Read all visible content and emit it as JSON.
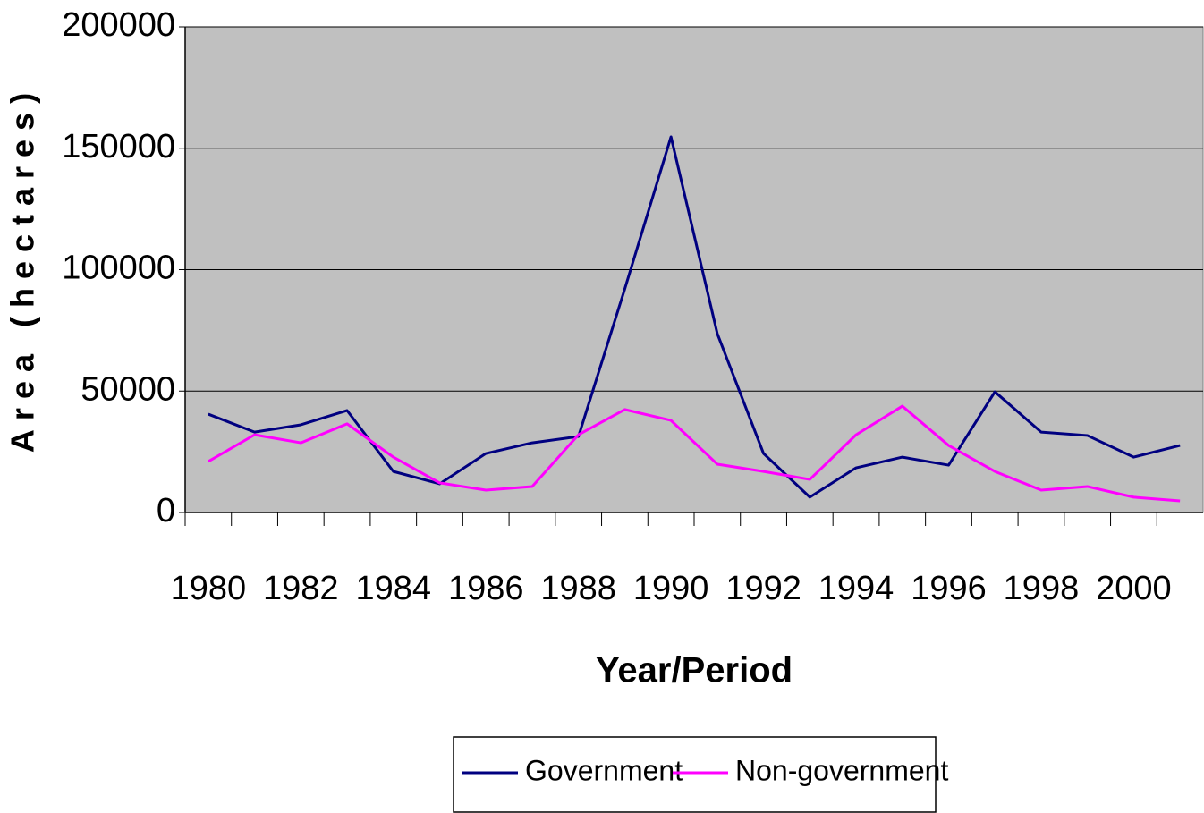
{
  "chart_data": {
    "type": "line",
    "x_label": "Year/Period",
    "y_label": "Area (hectares)",
    "categories": [
      "1980",
      null,
      "1982",
      null,
      "1984",
      null,
      "1986",
      null,
      "1988",
      null,
      "1990",
      null,
      "1992",
      null,
      "1994",
      null,
      "1996",
      null,
      "1998",
      null,
      "2000",
      null
    ],
    "series": [
      {
        "name": "Government",
        "color": "#000080",
        "values": [
          40500,
          33100,
          36100,
          42000,
          16900,
          11800,
          24300,
          28700,
          31300,
          92000,
          154700,
          73700,
          24300,
          6300,
          18400,
          22800,
          19500,
          49700,
          33100,
          31700,
          22800,
          27600
        ]
      },
      {
        "name": "Non-government",
        "color": "#ff00ff",
        "values": [
          21000,
          32000,
          28700,
          36500,
          22800,
          12200,
          9200,
          10700,
          32000,
          42400,
          37900,
          19900,
          16900,
          13600,
          32000,
          43800,
          27600,
          16900,
          9200,
          10700,
          6300,
          4800
        ]
      }
    ],
    "ylim": [
      0,
      200000
    ],
    "yticks": [
      0,
      50000,
      100000,
      150000,
      200000
    ],
    "grid": true,
    "plot_background": "#c0c0c0",
    "legend": "bottom"
  }
}
